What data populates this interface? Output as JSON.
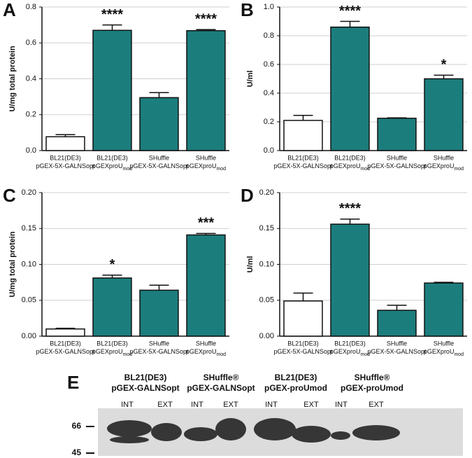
{
  "chart_data": [
    {
      "type": "bar",
      "panel": "A",
      "y_label": "U/mg total protein",
      "categories": [
        [
          "BL21(DE3)",
          "pGEX-5X-GALNSopt"
        ],
        [
          "BL21(DE3)",
          "pGEXproU",
          "mod"
        ],
        [
          "SHuffle",
          "pGEX-5X-GALNSopt"
        ],
        [
          "SHuffle",
          "pGEXproU",
          "mod"
        ]
      ],
      "values": [
        0.077,
        0.67,
        0.295,
        0.668
      ],
      "errors": [
        0.012,
        0.03,
        0.028,
        0.006
      ],
      "annotations": [
        null,
        "****",
        null,
        "****"
      ],
      "colors": [
        "#ffffff",
        "#1c7d7d",
        "#1c7d7d",
        "#1c7d7d"
      ],
      "ylim": [
        0,
        0.8
      ],
      "yticks": [
        {
          "value": 0,
          "label": "0.0"
        },
        0.2,
        0.4,
        0.6,
        0.8
      ],
      "grid": true
    },
    {
      "type": "bar",
      "panel": "B",
      "y_label": "U/ml",
      "categories": [
        [
          "BL21(DE3)",
          "pGEX-5X-GALNSopt"
        ],
        [
          "BL21(DE3)",
          "pGEXproU",
          "mod"
        ],
        [
          "SHuffle",
          "pGEX-5X-GALNSopt"
        ],
        [
          "SHuffle",
          "pGEXproU",
          "mod"
        ]
      ],
      "values": [
        0.21,
        0.86,
        0.225,
        0.5
      ],
      "errors": [
        0.035,
        0.04,
        0.003,
        0.025
      ],
      "annotations": [
        null,
        "****",
        null,
        "*"
      ],
      "colors": [
        "#ffffff",
        "#1c7d7d",
        "#1c7d7d",
        "#1c7d7d"
      ],
      "ylim": [
        0,
        1.0
      ],
      "yticks": [
        {
          "value": 0,
          "label": "0.0"
        },
        0.2,
        0.4,
        0.6,
        0.8,
        {
          "value": 1.0,
          "label": "1.0"
        }
      ],
      "grid": true
    },
    {
      "type": "bar",
      "panel": "C",
      "y_label": "U/mg total protein",
      "categories": [
        [
          "BL21(DE3)",
          "pGEX-5X-GALNSopt"
        ],
        [
          "BL21(DE3)",
          "pGEXproU",
          "mod"
        ],
        [
          "SHuffle",
          "pGEX-5X-GALNSopt"
        ],
        [
          "SHuffle",
          "pGEXproU",
          "mod"
        ]
      ],
      "values": [
        0.01,
        0.081,
        0.064,
        0.141
      ],
      "errors": [
        0.001,
        0.004,
        0.007,
        0.002
      ],
      "annotations": [
        null,
        "*",
        null,
        "***"
      ],
      "colors": [
        "#ffffff",
        "#1c7d7d",
        "#1c7d7d",
        "#1c7d7d"
      ],
      "ylim": [
        0,
        0.2
      ],
      "yticks": [
        {
          "value": 0,
          "label": "0.00"
        },
        0.05,
        {
          "value": 0.1,
          "label": "0.10"
        },
        0.15,
        {
          "value": 0.2,
          "label": "0.20"
        }
      ],
      "grid": true
    },
    {
      "type": "bar",
      "panel": "D",
      "y_label": "U/ml",
      "categories": [
        [
          "BL21(DE3)",
          "pGEX-5X-GALNSopt"
        ],
        [
          "BL21(DE3)",
          "pGEXproU",
          "mod"
        ],
        [
          "SHuffle",
          "pGEX-5X-GALNSopt"
        ],
        [
          "SHuffle",
          "pGEXproU",
          "mod"
        ]
      ],
      "values": [
        0.049,
        0.156,
        0.036,
        0.074
      ],
      "errors": [
        0.011,
        0.007,
        0.007,
        0.001
      ],
      "annotations": [
        null,
        "****",
        null,
        null
      ],
      "colors": [
        "#ffffff",
        "#1c7d7d",
        "#1c7d7d",
        "#1c7d7d"
      ],
      "ylim": [
        0,
        0.2
      ],
      "yticks": [
        {
          "value": 0,
          "label": "0.00"
        },
        0.05,
        {
          "value": 0.1,
          "label": "0.10"
        },
        0.15,
        {
          "value": 0.2,
          "label": "0.20"
        }
      ],
      "grid": true
    }
  ],
  "blot": {
    "panel": "E",
    "groups": [
      [
        "BL21(DE3)",
        "pGEX-GALNSopt"
      ],
      [
        "SHuffle®",
        "pGEX-GALNSopt"
      ],
      [
        "BL21(DE3)",
        "pGEX-proUmod"
      ],
      [
        "SHuffle®",
        "pGEX-proUmod"
      ]
    ],
    "lanes": [
      "INT",
      "EXT",
      "INT",
      "EXT",
      "INT",
      "EXT",
      "INT",
      "EXT"
    ],
    "markers": [
      "66",
      "45"
    ]
  }
}
